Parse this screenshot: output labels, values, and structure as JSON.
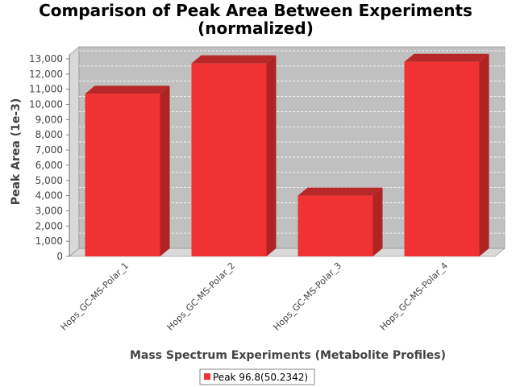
{
  "chart_data": {
    "type": "bar",
    "title_line1": "Comparison of Peak Area Between Experiments",
    "title_line2": "(normalized)",
    "xlabel": "Mass Spectrum Experiments (Metabolite Profiles)",
    "ylabel": "Peak Area (1e-3)",
    "categories": [
      "Hops_GC-MS-Polar_1",
      "Hops_GC-MS-Polar_2",
      "Hops_GC-MS-Polar_3",
      "Hops_GC-MS-Polar_4"
    ],
    "series": [
      {
        "name": "Peak 96.8(50.2342)",
        "values": [
          10700,
          12700,
          4000,
          12800
        ],
        "color": "#f03232"
      }
    ],
    "ylim": [
      0,
      13000
    ],
    "yticks": [
      "0",
      "1,000",
      "2,000",
      "3,000",
      "4,000",
      "5,000",
      "6,000",
      "7,000",
      "8,000",
      "9,000",
      "10,000",
      "11,000",
      "12,000",
      "13,000"
    ],
    "ytick_values": [
      0,
      1000,
      2000,
      3000,
      4000,
      5000,
      6000,
      7000,
      8000,
      9000,
      10000,
      11000,
      12000,
      13000
    ],
    "grid": true,
    "legend_position": "bottom",
    "plot_background": "#c0c0c0"
  }
}
